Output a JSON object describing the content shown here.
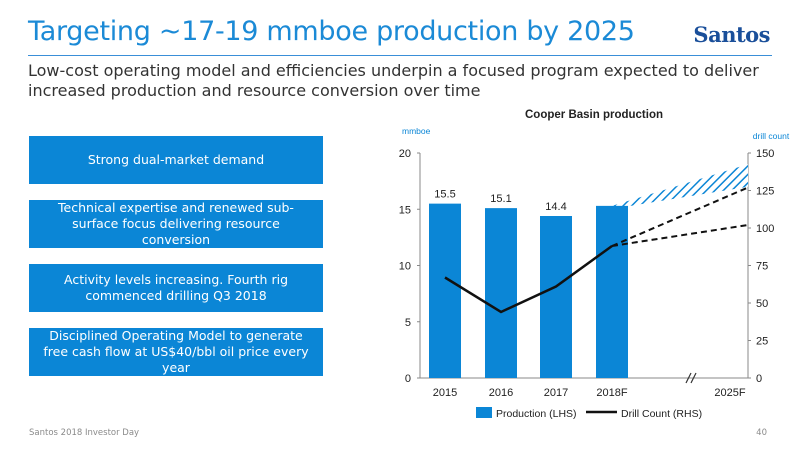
{
  "header": {
    "title": "Targeting ~17-19 mmboe production by 2025",
    "logo": "Santos"
  },
  "subtitle": "Low-cost operating model and efficiencies underpin a focused program expected to deliver increased production and resource conversion over time",
  "bullets": [
    "Strong dual-market demand",
    "Technical expertise and renewed sub-surface focus delivering resource conversion",
    "Activity levels increasing. Fourth rig commenced drilling Q3 2018",
    "Disciplined Operating Model to generate free cash flow at US$40/bbl oil price every year"
  ],
  "footer": {
    "left": "Santos 2018 Investor Day",
    "page": "40"
  },
  "colors": {
    "accent": "#0b86d6",
    "title": "#1b8ad6",
    "line": "#111111"
  },
  "chart_data": {
    "type": "bar",
    "title": "Cooper Basin production",
    "categories": [
      "2015",
      "2016",
      "2017",
      "2018F",
      "2025F"
    ],
    "ylabel_left": "mmboe",
    "ylabel_right": "drill count",
    "ylim_left": [
      0,
      20
    ],
    "ylim_right": [
      0,
      150
    ],
    "yticks_left": [
      0,
      5,
      10,
      15,
      20
    ],
    "yticks_right": [
      0,
      25,
      50,
      75,
      100,
      125,
      150
    ],
    "axis_break_between": [
      "2018F",
      "2025F"
    ],
    "series": [
      {
        "name": "Production (LHS)",
        "type": "bar",
        "axis": "left",
        "values": [
          15.5,
          15.1,
          14.4,
          15.3,
          null
        ],
        "data_labels": [
          "15.5",
          "15.1",
          "14.4",
          "",
          ""
        ]
      },
      {
        "name": "Drill Count (RHS)",
        "type": "line",
        "axis": "right",
        "values": [
          67,
          44,
          61,
          88,
          null
        ]
      }
    ],
    "projection": {
      "production_range_2025F": [
        17,
        19
      ],
      "drill_count_range_2025F": [
        102,
        127
      ]
    },
    "legend": "bottom"
  }
}
